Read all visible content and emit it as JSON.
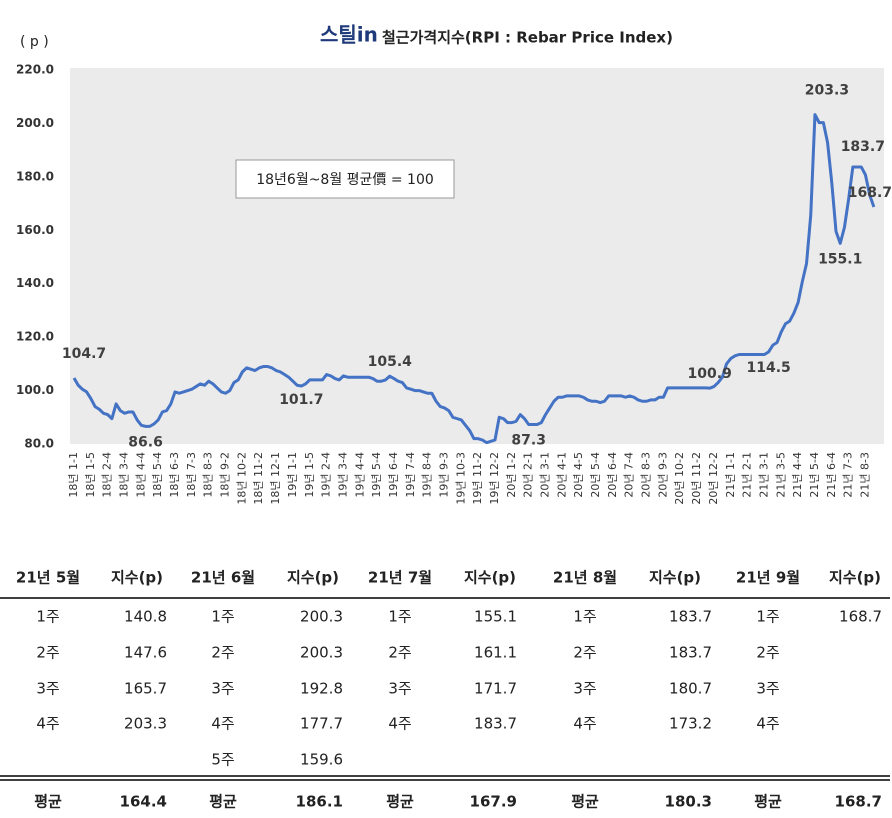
{
  "chart_data": {
    "type": "line",
    "logo": "스틸in",
    "title": "철근가격지수(RPI : Rebar Price Index)",
    "y_label": "( p )",
    "annotation": "18년6월~8월 평균價 = 100",
    "categories": [
      "18년 1-1",
      null,
      null,
      null,
      "18년 1-5",
      null,
      null,
      null,
      "18년 2-4",
      null,
      null,
      null,
      "18년 3-4",
      null,
      null,
      null,
      "18년 4-4",
      null,
      null,
      null,
      "18년 5-4",
      null,
      null,
      null,
      "18년 6-3",
      null,
      null,
      null,
      "18년 7-3",
      null,
      null,
      null,
      "18년 8-3",
      null,
      null,
      null,
      "18년 9-2",
      null,
      null,
      null,
      "18년 10-2",
      null,
      null,
      null,
      "18년 11-2",
      null,
      null,
      null,
      "18년 12-1",
      null,
      null,
      null,
      "19년 1-1",
      null,
      null,
      null,
      "19년 1-5",
      null,
      null,
      null,
      "19년 2-4",
      null,
      null,
      null,
      "19년 3-4",
      null,
      null,
      null,
      "19년 4-4",
      null,
      null,
      null,
      "19년 5-4",
      null,
      null,
      null,
      "19년 6-4",
      null,
      null,
      null,
      "19년 7-4",
      null,
      null,
      null,
      "19년 8-4",
      null,
      null,
      null,
      "19년 9-3",
      null,
      null,
      null,
      "19년 10-3",
      null,
      null,
      null,
      "19년 11-2",
      null,
      null,
      null,
      "19년 12-2",
      null,
      null,
      null,
      "20년 1-2",
      null,
      null,
      null,
      "20년 2-1",
      null,
      null,
      null,
      "20년 3-1",
      null,
      null,
      null,
      "20년 4-1",
      null,
      null,
      null,
      "20년 4-5",
      null,
      null,
      null,
      "20년 5-4",
      null,
      null,
      null,
      "20년 6-4",
      null,
      null,
      null,
      "20년 7-4",
      null,
      null,
      null,
      "20년 8-3",
      null,
      null,
      null,
      "20년 9-3",
      null,
      null,
      null,
      "20년 10-2",
      null,
      null,
      null,
      "20년 11-2",
      null,
      null,
      null,
      "20년 12-2",
      null,
      null,
      null,
      "21년 1-1",
      null,
      null,
      null,
      "21년 2-1",
      null,
      null,
      null,
      "21년 3-1",
      null,
      null,
      null,
      "21년 3-5",
      null,
      null,
      null,
      "21년 4-4",
      null,
      null,
      null,
      "21년 5-4",
      null,
      null,
      null,
      "21년 6-4",
      null,
      null,
      null,
      "21년 7-3",
      null,
      null,
      null,
      "21년 8-3",
      null,
      null
    ],
    "series": [
      {
        "name": "RPI",
        "color": "#4472c4",
        "values": [
          104.7,
          102,
          100.5,
          99.5,
          97,
          94,
          93,
          91.5,
          91,
          89.5,
          95,
          92.5,
          91.5,
          92,
          92,
          89,
          87,
          86.6,
          86.6,
          87.5,
          89,
          92,
          92.5,
          95,
          99.5,
          99,
          99.5,
          100,
          100.5,
          101.5,
          102.5,
          102,
          103.5,
          102.5,
          101,
          99.5,
          99,
          100,
          103,
          104,
          107,
          108.5,
          108,
          107.5,
          108.5,
          109,
          109,
          108.5,
          107.5,
          107,
          106,
          105,
          103.5,
          102,
          101.7,
          102.5,
          104,
          104,
          104,
          104,
          106,
          105.5,
          104.5,
          104,
          105.5,
          105,
          105,
          105,
          105,
          105,
          105,
          104.5,
          103.5,
          103.5,
          104,
          105.4,
          104.5,
          103.5,
          103,
          101,
          100.5,
          100,
          100,
          99.5,
          99,
          99,
          96,
          94,
          93.5,
          92.5,
          90,
          89.5,
          89,
          87,
          85,
          82,
          82,
          81.5,
          80.5,
          81,
          81.5,
          90,
          89.5,
          88,
          88,
          88.5,
          91,
          89.5,
          87.3,
          87.3,
          87.3,
          88,
          91,
          93.5,
          96,
          97.5,
          97.5,
          98,
          98,
          98,
          98,
          97.5,
          96.5,
          96,
          96,
          95.5,
          96,
          98,
          98,
          98,
          98,
          97.5,
          98,
          97.5,
          96.5,
          96,
          96,
          96.5,
          96.5,
          97.5,
          97.5,
          101,
          101,
          101,
          101,
          101,
          101,
          101,
          101,
          101,
          101,
          100.9,
          101.5,
          103,
          105,
          110,
          112,
          113,
          113.5,
          113.5,
          113.5,
          113.5,
          113.5,
          113.5,
          113.5,
          114.5,
          117,
          118,
          122,
          125,
          126,
          129,
          133,
          140.8,
          147.6,
          165.7,
          203.3,
          200.3,
          200.3,
          192.8,
          177.7,
          159.6,
          155.1,
          161.1,
          171.7,
          183.7,
          183.7,
          183.7,
          180.7,
          173.2,
          168.7
        ]
      }
    ],
    "ylim": [
      80,
      220
    ],
    "yticks": [
      {
        "value": 80,
        "label": "80.0"
      },
      {
        "value": 100,
        "label": "100.0"
      },
      {
        "value": 120,
        "label": "120.0"
      },
      {
        "value": 140,
        "label": "140.0"
      },
      {
        "value": 160,
        "label": "160.0"
      },
      {
        "value": 180,
        "label": "180.0"
      },
      {
        "value": 200,
        "label": "200.0"
      },
      {
        "value": 220,
        "label": "220.0"
      }
    ],
    "grid": false
  },
  "table": {
    "header": [
      "21년 5월",
      "지수(p)",
      "21년 6월",
      "지수(p)",
      "21년 7월",
      "지수(p)",
      "21년 8월",
      "지수(p)",
      "21년 9월",
      "지수(p)"
    ],
    "rows": [
      [
        "1주",
        140.8,
        "1주",
        200.3,
        "1주",
        155.1,
        "1주",
        183.7,
        "1주",
        168.7
      ],
      [
        "2주",
        147.6,
        "2주",
        200.3,
        "2주",
        161.1,
        "2주",
        183.7,
        "2주",
        null
      ],
      [
        "3주",
        165.7,
        "3주",
        192.8,
        "3주",
        171.7,
        "3주",
        180.7,
        "3주",
        null
      ],
      [
        "4주",
        203.3,
        "4주",
        177.7,
        "4주",
        183.7,
        "4주",
        173.2,
        "4주",
        null
      ],
      [
        null,
        null,
        "5주",
        159.6,
        null,
        null,
        null,
        null,
        null,
        null
      ]
    ],
    "footer": [
      "평균",
      164.4,
      "평균",
      186.1,
      "평균",
      167.9,
      "평균",
      180.3,
      "평균",
      168.7
    ]
  }
}
